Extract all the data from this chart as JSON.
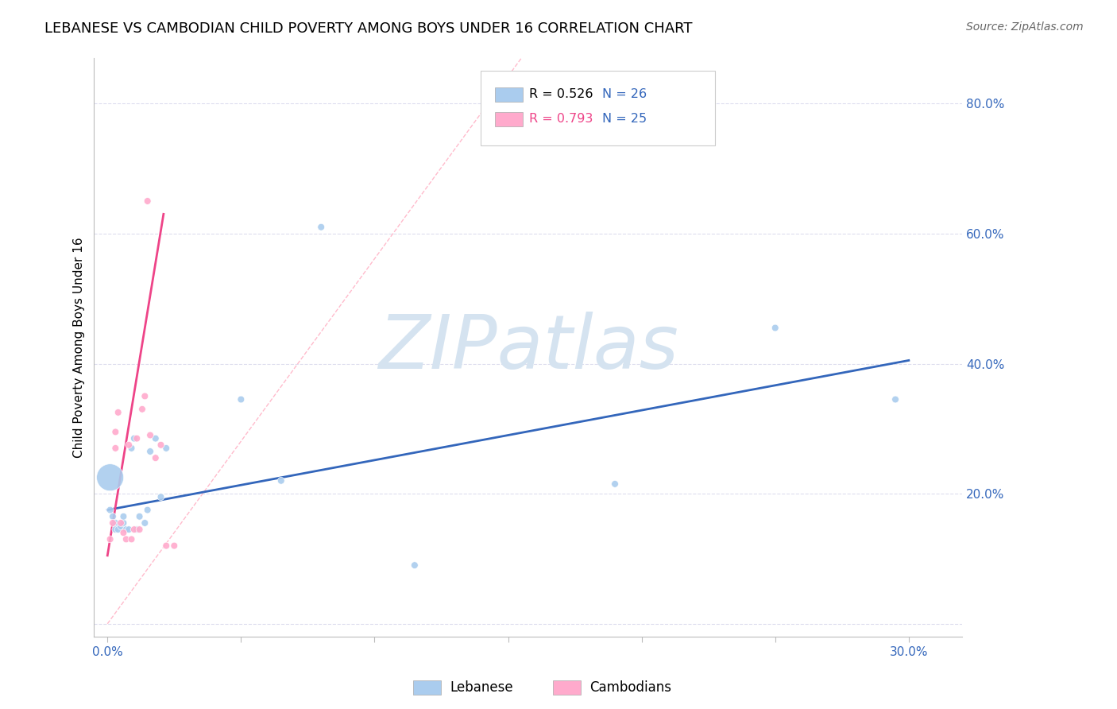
{
  "title": "LEBANESE VS CAMBODIAN CHILD POVERTY AMONG BOYS UNDER 16 CORRELATION CHART",
  "source": "Source: ZipAtlas.com",
  "ylabel": "Child Poverty Among Boys Under 16",
  "x_ticks": [
    0.0,
    0.05,
    0.1,
    0.15,
    0.2,
    0.25,
    0.3
  ],
  "x_tick_labels": [
    "0.0%",
    "",
    "",
    "",
    "",
    "",
    "30.0%"
  ],
  "y_ticks": [
    0.0,
    0.2,
    0.4,
    0.6,
    0.8
  ],
  "y_tick_labels": [
    "",
    "20.0%",
    "40.0%",
    "60.0%",
    "80.0%"
  ],
  "xlim": [
    -0.005,
    0.32
  ],
  "ylim": [
    -0.02,
    0.87
  ],
  "legend_label1": "Lebanese",
  "legend_label2": "Cambodians",
  "blue_color": "#AACCEE",
  "pink_color": "#FFAACC",
  "blue_line_color": "#3366BB",
  "pink_line_color": "#EE4488",
  "ref_line_color": "#FFBBCC",
  "watermark": "ZIPatlas",
  "watermark_color": "#D5E3F0",
  "title_fontsize": 13,
  "source_fontsize": 10,
  "tick_fontsize": 11,
  "ylabel_fontsize": 11,
  "lebanese_x": [
    0.001,
    0.001,
    0.002,
    0.003,
    0.003,
    0.004,
    0.005,
    0.006,
    0.006,
    0.007,
    0.008,
    0.009,
    0.01,
    0.011,
    0.012,
    0.014,
    0.015,
    0.016,
    0.018,
    0.02,
    0.022,
    0.05,
    0.065,
    0.08,
    0.115,
    0.19,
    0.25,
    0.295
  ],
  "lebanese_y": [
    0.225,
    0.175,
    0.165,
    0.155,
    0.145,
    0.145,
    0.15,
    0.155,
    0.165,
    0.145,
    0.145,
    0.27,
    0.285,
    0.145,
    0.165,
    0.155,
    0.175,
    0.265,
    0.285,
    0.195,
    0.27,
    0.345,
    0.22,
    0.61,
    0.09,
    0.215,
    0.455,
    0.345
  ],
  "lebanese_size": [
    600,
    40,
    40,
    40,
    40,
    40,
    40,
    40,
    40,
    40,
    40,
    40,
    40,
    40,
    40,
    40,
    40,
    40,
    40,
    40,
    40,
    40,
    40,
    40,
    40,
    40,
    40,
    40
  ],
  "cambodian_x": [
    0.001,
    0.002,
    0.003,
    0.003,
    0.004,
    0.005,
    0.006,
    0.007,
    0.008,
    0.009,
    0.01,
    0.011,
    0.012,
    0.013,
    0.014,
    0.015,
    0.016,
    0.018,
    0.02,
    0.022,
    0.025
  ],
  "cambodian_y": [
    0.13,
    0.155,
    0.295,
    0.27,
    0.325,
    0.155,
    0.14,
    0.13,
    0.275,
    0.13,
    0.145,
    0.285,
    0.145,
    0.33,
    0.35,
    0.65,
    0.29,
    0.255,
    0.275,
    0.12,
    0.12
  ],
  "cambodian_size": [
    40,
    40,
    40,
    40,
    40,
    40,
    40,
    40,
    40,
    40,
    40,
    40,
    40,
    40,
    40,
    40,
    40,
    40,
    40,
    40,
    40
  ],
  "blue_line_x": [
    0.0,
    0.3
  ],
  "blue_line_y": [
    0.175,
    0.405
  ],
  "pink_line_x": [
    0.0,
    0.021
  ],
  "pink_line_y": [
    0.105,
    0.63
  ],
  "ref_line_x": [
    0.0,
    0.155
  ],
  "ref_line_y": [
    0.0,
    0.87
  ]
}
